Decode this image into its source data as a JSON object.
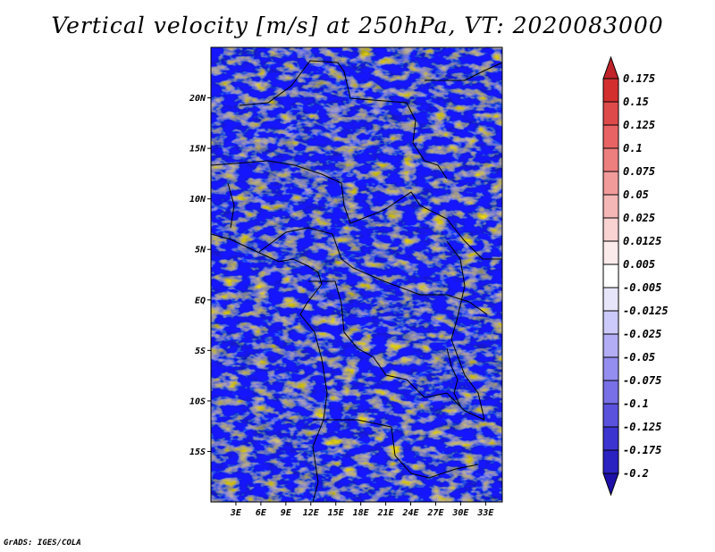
{
  "title": "Vertical velocity [m/s] at 250hPa, VT: 2020083000",
  "credit": "GrADS: IGES/COLA",
  "map": {
    "lon_range": [
      0,
      35
    ],
    "lat_range": [
      -20,
      25
    ],
    "lat_ticks": [
      {
        "value": 20,
        "label": "20N"
      },
      {
        "value": 15,
        "label": "15N"
      },
      {
        "value": 10,
        "label": "10N"
      },
      {
        "value": 5,
        "label": "5N"
      },
      {
        "value": 0,
        "label": "EQ"
      },
      {
        "value": -5,
        "label": "5S"
      },
      {
        "value": -10,
        "label": "10S"
      },
      {
        "value": -15,
        "label": "15S"
      }
    ],
    "lon_ticks": [
      {
        "value": 3,
        "label": "3E"
      },
      {
        "value": 6,
        "label": "6E"
      },
      {
        "value": 9,
        "label": "9E"
      },
      {
        "value": 12,
        "label": "12E"
      },
      {
        "value": 15,
        "label": "15E"
      },
      {
        "value": 18,
        "label": "18E"
      },
      {
        "value": 21,
        "label": "21E"
      },
      {
        "value": 24,
        "label": "24E"
      },
      {
        "value": 27,
        "label": "27E"
      },
      {
        "value": 30,
        "label": "30E"
      },
      {
        "value": 33,
        "label": "33E"
      }
    ]
  },
  "colorbar": {
    "labels": [
      "0.175",
      "0.15",
      "0.125",
      "0.1",
      "0.075",
      "0.05",
      "0.025",
      "0.0125",
      "0.005",
      "-0.005",
      "-0.0125",
      "-0.025",
      "-0.05",
      "-0.075",
      "-0.1",
      "-0.125",
      "-0.175",
      "-0.2"
    ],
    "colors": [
      "#c0232a",
      "#d32f2f",
      "#de4a4a",
      "#e86464",
      "#ee7f7f",
      "#f29b9b",
      "#f5b6b6",
      "#f9d2d2",
      "#fcebeb",
      "#ffffff",
      "#e7e5fa",
      "#cccafa",
      "#b2adf4",
      "#948ef0",
      "#7770e6",
      "#5a52dc",
      "#3c34d0",
      "#2b22c2",
      "#1d10a8"
    ]
  }
}
